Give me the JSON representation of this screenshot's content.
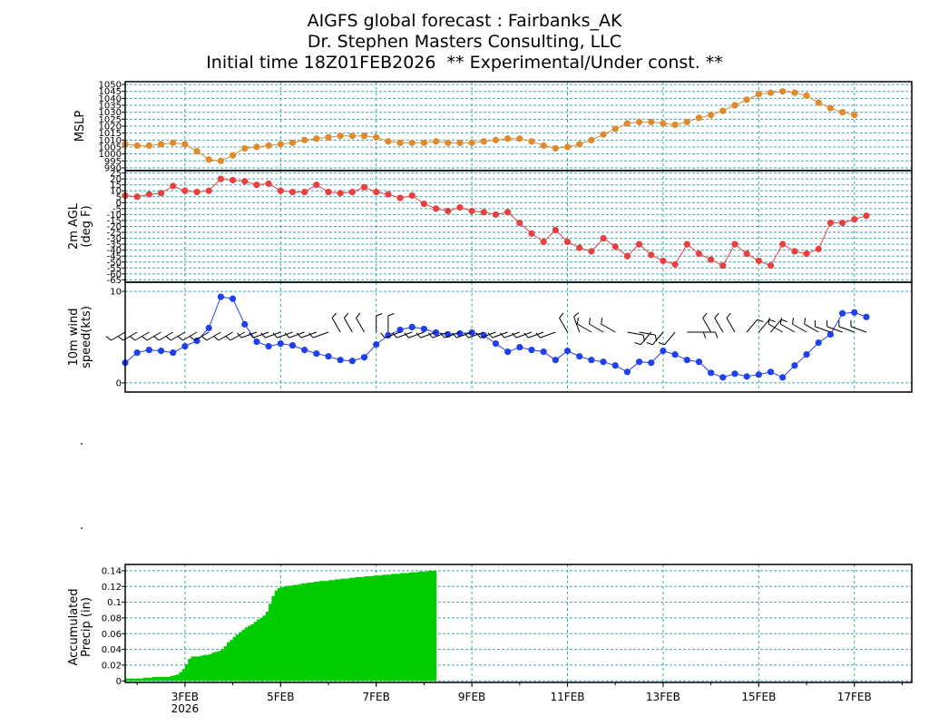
{
  "titles": {
    "line1": "AIGFS global forecast : Fairbanks_AK",
    "line2": "Dr. Stephen Masters Consulting, LLC",
    "line3": "Initial time 18Z01FEB2026  ** Experimental/Under const. **"
  },
  "colors": {
    "mslp": "#e08a2e",
    "temp": "#e84040",
    "wind": "#2040f0",
    "precip": "#00cc00",
    "grid": "#3aa6b0"
  },
  "chart_data": [
    {
      "type": "line",
      "panel": "mslp",
      "ylabel": "MSLP",
      "yticks": [
        990,
        995,
        1000,
        1005,
        1010,
        1015,
        1020,
        1025,
        1030,
        1035,
        1040,
        1045,
        1050
      ],
      "ylim": [
        988,
        1052
      ],
      "x_start_day": 1.75,
      "x_step_hours": 6,
      "values": [
        1007,
        1006,
        1006,
        1007,
        1008,
        1007,
        1002,
        996,
        995,
        999,
        1004,
        1005,
        1006,
        1007,
        1008,
        1010,
        1011,
        1012,
        1013,
        1013,
        1013,
        1012,
        1009,
        1008,
        1008,
        1008,
        1009,
        1008,
        1008,
        1008,
        1009,
        1010,
        1011,
        1011,
        1009,
        1006,
        1004,
        1005,
        1007,
        1010,
        1014,
        1018,
        1022,
        1023,
        1023,
        1022,
        1021,
        1023,
        1026,
        1028,
        1031,
        1035,
        1039,
        1043,
        1044,
        1045,
        1044,
        1042,
        1037,
        1033,
        1030,
        1028
      ],
      "grid": true
    },
    {
      "type": "line",
      "panel": "temp",
      "ylabel": "2m AGL (deg F)",
      "yticks": [
        -65,
        -60,
        -55,
        -50,
        -45,
        -40,
        -35,
        -30,
        -25,
        -20,
        -15,
        -10,
        -5,
        0,
        5,
        10,
        15,
        20,
        25
      ],
      "ylim": [
        -67,
        27
      ],
      "x_start_day": 1.75,
      "x_step_hours": 6,
      "values": [
        6,
        5,
        7,
        8,
        14,
        10,
        9,
        10,
        20,
        19,
        18,
        15,
        16,
        10,
        9,
        9,
        15,
        9,
        8,
        9,
        13,
        9,
        7,
        4,
        6,
        -1,
        -5,
        -7,
        -4,
        -7,
        -8,
        -10,
        -8,
        -17,
        -26,
        -33,
        -23,
        -33,
        -38,
        -41,
        -30,
        -37,
        -45,
        -35,
        -44,
        -49,
        -52,
        -35,
        -43,
        -48,
        -53,
        -35,
        -43,
        -49,
        -53,
        -35,
        -41,
        -43,
        -39,
        -17,
        -17,
        -14,
        -11
      ],
      "grid": true
    },
    {
      "type": "line",
      "panel": "wind",
      "ylabel": "10m wind speed(kts)",
      "yticks": [
        0,
        10
      ],
      "ylim": [
        -1,
        11
      ],
      "x_start_day": 1.75,
      "x_step_hours": 6,
      "values": [
        2.2,
        3.3,
        3.6,
        3.5,
        3.3,
        4.0,
        4.6,
        6.0,
        9.4,
        9.2,
        6.4,
        4.5,
        4.0,
        4.3,
        4.1,
        3.6,
        3.2,
        2.9,
        2.5,
        2.4,
        2.8,
        4.2,
        5.2,
        5.8,
        6.1,
        5.9,
        5.5,
        5.3,
        5.4,
        5.5,
        5.2,
        4.3,
        3.4,
        3.9,
        3.6,
        3.4,
        2.5,
        3.5,
        2.9,
        2.5,
        2.3,
        1.9,
        1.2,
        2.3,
        2.2,
        3.5,
        3.1,
        2.5,
        2.3,
        1.1,
        0.6,
        1.0,
        0.7,
        0.9,
        1.2,
        0.6,
        1.9,
        3.1,
        4.4,
        5.3,
        7.6,
        7.7,
        7.2
      ],
      "barb_dirs": [
        240,
        240,
        240,
        240,
        240,
        240,
        240,
        240,
        240,
        240,
        240,
        250,
        250,
        250,
        250,
        250,
        250,
        250,
        330,
        330,
        330,
        0,
        0,
        250,
        250,
        250,
        250,
        250,
        250,
        250,
        250,
        250,
        250,
        250,
        250,
        250,
        250,
        330,
        340,
        300,
        300,
        300,
        100,
        100,
        220,
        220,
        220,
        90,
        90,
        330,
        330,
        330,
        40,
        40,
        40,
        300,
        300,
        300,
        300,
        290,
        290,
        290,
        290
      ],
      "grid": true
    },
    {
      "type": "bar",
      "panel": "precip",
      "ylabel": "Accumulated Precip (in)",
      "yticks": [
        0,
        0.02,
        0.04,
        0.06,
        0.08,
        0.1,
        0.12,
        0.14
      ],
      "ytick_labels": [
        "0",
        "0.02",
        "0.04",
        "0.06",
        "0.08",
        "0.1",
        "0.12",
        "0.14"
      ],
      "ylim": [
        -0.002,
        0.148
      ],
      "x_start_day": 1.75,
      "x_step_hours": 6,
      "values": [
        0.003,
        0.003,
        0.003,
        0.003,
        0.003,
        0.003,
        0.004,
        0.004,
        0.004,
        0.005,
        0.005,
        0.005,
        0.005,
        0.005,
        0.005,
        0.006,
        0.007,
        0.008,
        0.011,
        0.015,
        0.021,
        0.028,
        0.031,
        0.031,
        0.031,
        0.032,
        0.033,
        0.033,
        0.034,
        0.036,
        0.037,
        0.038,
        0.04,
        0.044,
        0.049,
        0.052,
        0.056,
        0.059,
        0.062,
        0.065,
        0.068,
        0.07,
        0.072,
        0.075,
        0.078,
        0.08,
        0.083,
        0.088,
        0.098,
        0.108,
        0.115,
        0.118,
        0.119,
        0.12,
        0.121,
        0.121,
        0.122,
        0.122,
        0.123,
        0.124,
        0.124,
        0.125,
        0.125,
        0.126,
        0.126,
        0.127,
        0.127,
        0.127,
        0.128,
        0.128,
        0.129,
        0.129,
        0.13,
        0.13,
        0.13,
        0.131,
        0.131,
        0.132,
        0.132,
        0.132,
        0.133,
        0.133,
        0.133,
        0.134,
        0.134,
        0.134,
        0.135,
        0.135,
        0.135,
        0.136,
        0.136,
        0.136,
        0.137,
        0.137,
        0.137,
        0.138,
        0.138,
        0.138,
        0.139,
        0.139,
        0.139,
        0.14,
        0.14,
        0.14
      ],
      "grid": true
    }
  ],
  "x_axis": {
    "tick_days": [
      3,
      5,
      7,
      9,
      11,
      13,
      15,
      17
    ],
    "tick_labels": [
      "3FEB",
      "5FEB",
      "7FEB",
      "9FEB",
      "11FEB",
      "13FEB",
      "15FEB",
      "17FEB"
    ],
    "year_label": "2026",
    "x_min_day": 1.75,
    "x_max_day": 18.2
  }
}
